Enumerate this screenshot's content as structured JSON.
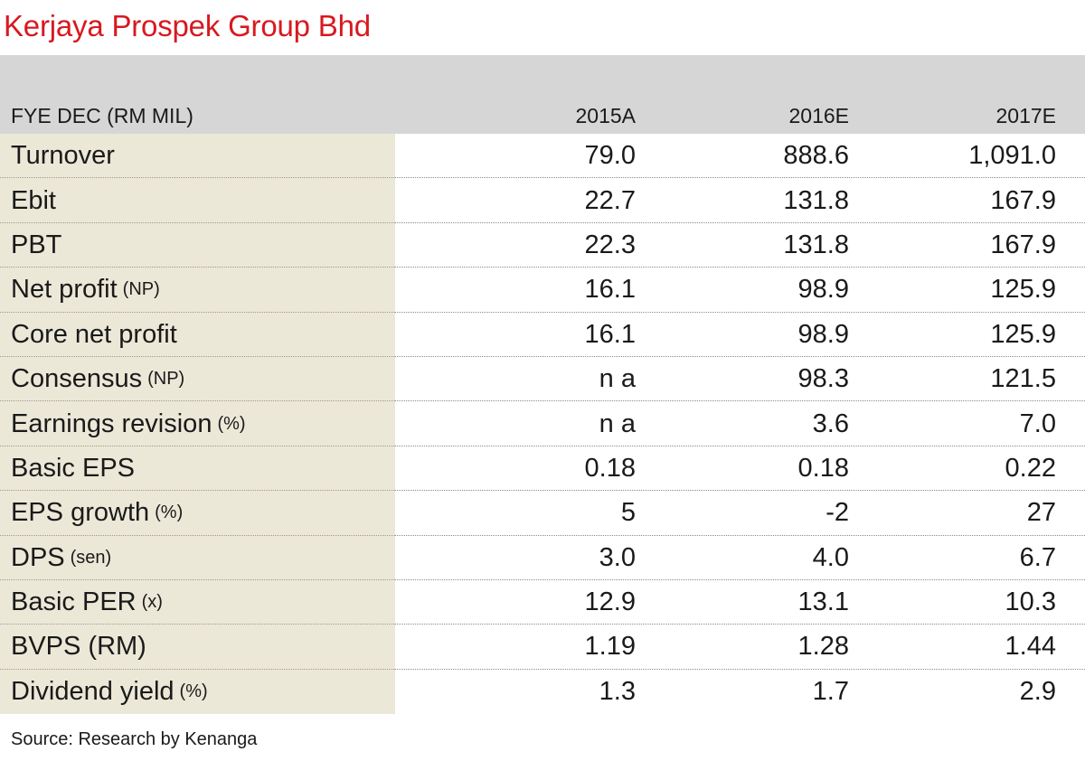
{
  "title": "Kerjaya Prospek Group Bhd",
  "table": {
    "header": {
      "label": "FYE DEC (RM MIL)",
      "col1": "2015A",
      "col2": "2016E",
      "col3": "2017E"
    },
    "rows": [
      {
        "label": "Turnover",
        "unit": "",
        "v1": "79.0",
        "v2": "888.6",
        "v3": "1,091.0"
      },
      {
        "label": "Ebit",
        "unit": "",
        "v1": "22.7",
        "v2": "131.8",
        "v3": "167.9"
      },
      {
        "label": "PBT",
        "unit": "",
        "v1": "22.3",
        "v2": "131.8",
        "v3": "167.9"
      },
      {
        "label": "Net profit",
        "unit": "(NP)",
        "v1": "16.1",
        "v2": "98.9",
        "v3": "125.9"
      },
      {
        "label": "Core net profit",
        "unit": "",
        "v1": "16.1",
        "v2": "98.9",
        "v3": "125.9"
      },
      {
        "label": "Consensus",
        "unit": "(NP)",
        "v1": "n a",
        "v2": "98.3",
        "v3": "121.5"
      },
      {
        "label": "Earnings revision",
        "unit": "(%)",
        "v1": "n a",
        "v2": "3.6",
        "v3": "7.0"
      },
      {
        "label": "Basic EPS",
        "unit": "",
        "v1": "0.18",
        "v2": "0.18",
        "v3": "0.22"
      },
      {
        "label": "EPS growth",
        "unit": "(%)",
        "v1": "5",
        "v2": "-2",
        "v3": "27"
      },
      {
        "label": "DPS",
        "unit": "(sen)",
        "v1": "3.0",
        "v2": "4.0",
        "v3": "6.7"
      },
      {
        "label": "Basic PER",
        "unit": "(x)",
        "v1": "12.9",
        "v2": "13.1",
        "v3": "10.3"
      },
      {
        "label": "BVPS (RM)",
        "unit": "",
        "v1": "1.19",
        "v2": "1.28",
        "v3": "1.44"
      },
      {
        "label": "Dividend yield",
        "unit": "(%)",
        "v1": "1.3",
        "v2": "1.7",
        "v3": "2.9"
      }
    ]
  },
  "source": "Source: Research by Kenanga",
  "colors": {
    "title": "#d71920",
    "header_band": "#d6d6d6",
    "label_column": "#ece8d8"
  }
}
